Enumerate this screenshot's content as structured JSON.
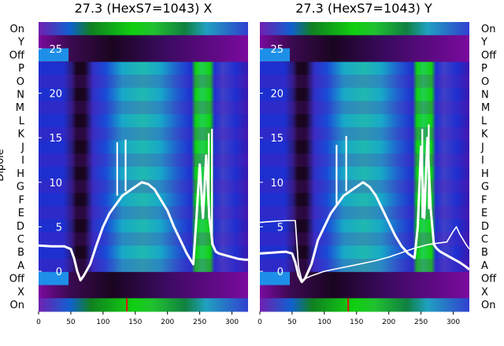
{
  "colors": {
    "background": "#ffffff",
    "trace": "#ffffff",
    "purple": "#7a0a9e",
    "blue": "#1e2fd0",
    "dark": "#1a0520",
    "cyan": "#18a8c8",
    "green": "#10d010",
    "light_blue": "#1e8fe8",
    "red": "#e01010"
  },
  "row_labels": [
    "On",
    "Y",
    "Off",
    "P",
    "O",
    "N",
    "M",
    "L",
    "K",
    "J",
    "I",
    "H",
    "G",
    "F",
    "E",
    "D",
    "C",
    "B",
    "A",
    "Off",
    "X",
    "On"
  ],
  "left_axis_label": "Dipole",
  "chart_data": [
    {
      "type": "heatmap",
      "title": "27.3 (HexS7=1043) X",
      "x_ticks": [
        "0",
        "50",
        "100",
        "150",
        "200",
        "250",
        "300"
      ],
      "xlim": [
        0,
        325
      ],
      "y_ticks": [
        "0",
        "5",
        "10",
        "15",
        "20",
        "25"
      ],
      "ylim": [
        -4.5,
        28
      ],
      "grid": false,
      "series": [
        {
          "x": [
            0,
            20,
            40,
            50,
            55,
            60,
            65,
            70,
            80,
            90,
            100,
            110,
            120,
            130,
            140,
            150,
            160,
            170,
            180,
            190,
            200,
            210,
            220,
            230,
            240,
            245,
            250,
            255,
            260,
            265,
            270,
            275,
            280,
            290,
            300,
            310,
            320,
            325
          ],
          "y": [
            2.9,
            2.8,
            2.8,
            2.5,
            1.5,
            0,
            -1,
            -0.5,
            0.8,
            3,
            5,
            6.5,
            7.5,
            8.5,
            9,
            9.5,
            10,
            9.8,
            9.2,
            8,
            6.8,
            5,
            3.5,
            2,
            0.8,
            6,
            12,
            6,
            13,
            6,
            3,
            2.2,
            2,
            1.8,
            1.6,
            1.4,
            1.3,
            1.3
          ],
          "spikes": [
            {
              "x": 122,
              "y": 14.5
            },
            {
              "x": 135,
              "y": 14.8
            },
            {
              "x": 264,
              "y": 15.5
            },
            {
              "x": 269,
              "y": 16
            }
          ]
        }
      ]
    },
    {
      "type": "heatmap",
      "title": "27.3 (HexS7=1043) Y",
      "x_ticks": [
        "0",
        "50",
        "100",
        "150",
        "200",
        "250",
        "300"
      ],
      "xlim": [
        0,
        325
      ],
      "y_ticks": [
        "0",
        "5",
        "10",
        "15",
        "20",
        "25"
      ],
      "ylim": [
        -4.5,
        28
      ],
      "grid": false,
      "series": [
        {
          "x": [
            0,
            20,
            40,
            50,
            55,
            60,
            65,
            70,
            80,
            90,
            100,
            110,
            120,
            130,
            140,
            150,
            160,
            170,
            180,
            190,
            200,
            210,
            220,
            230,
            240,
            245,
            250,
            255,
            260,
            265,
            270,
            275,
            280,
            290,
            300,
            310,
            320,
            325
          ],
          "y": [
            2.0,
            2.1,
            2.2,
            2.0,
            1.0,
            -0.5,
            -1.2,
            -0.8,
            0.8,
            3.5,
            5,
            6.5,
            7.5,
            8.5,
            9,
            9.5,
            10,
            9.5,
            8.5,
            7,
            5.5,
            4,
            2.8,
            2,
            1.5,
            5,
            14,
            6,
            15,
            7,
            3,
            2.5,
            2.2,
            1.8,
            1.4,
            1.0,
            0.5,
            0.2
          ],
          "spikes": [
            {
              "x": 119,
              "y": 14.2
            },
            {
              "x": 134,
              "y": 15.2
            },
            {
              "x": 252,
              "y": 16
            },
            {
              "x": 262,
              "y": 16.5
            }
          ]
        },
        {
          "x": [
            0,
            20,
            40,
            55,
            60,
            65,
            80,
            100,
            120,
            140,
            160,
            180,
            200,
            220,
            240,
            260,
            280,
            290,
            300,
            305,
            310,
            320,
            325
          ],
          "y": [
            5.5,
            5.6,
            5.7,
            5.7,
            0.5,
            -1.0,
            -0.5,
            0,
            0.3,
            0.6,
            0.9,
            1.2,
            1.6,
            2.1,
            2.6,
            3.0,
            3.2,
            3.3,
            4.5,
            5.0,
            4.2,
            3.0,
            2.5
          ]
        }
      ]
    }
  ]
}
